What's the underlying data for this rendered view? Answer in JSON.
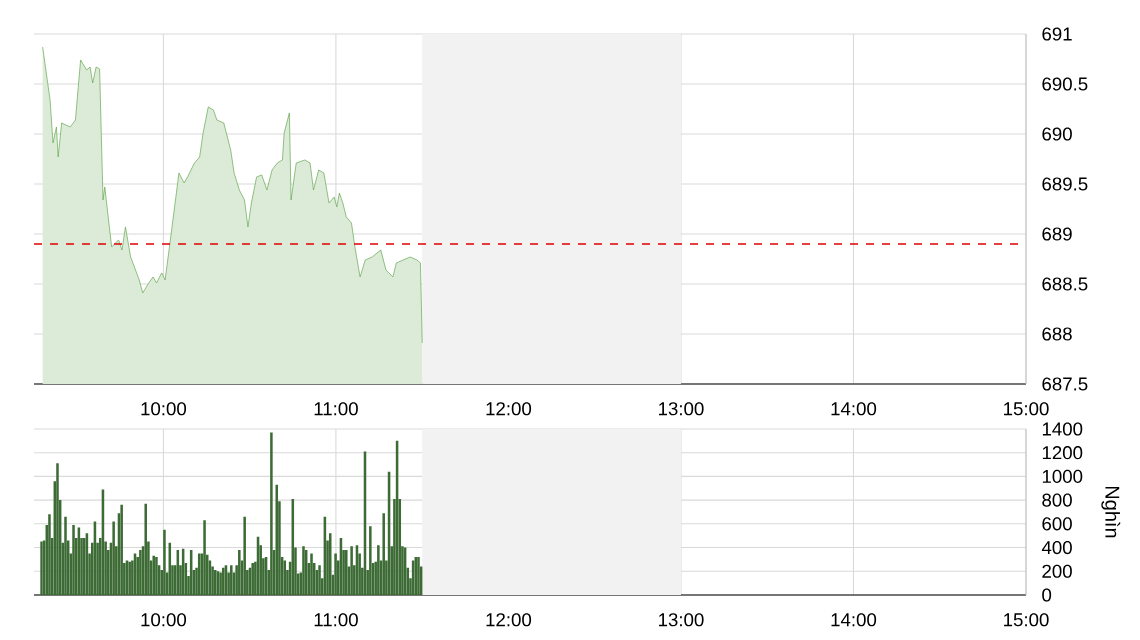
{
  "chart_data": [
    {
      "type": "area",
      "xlim": [
        9.25,
        15
      ],
      "ylim": [
        687.5,
        691
      ],
      "xticks": [
        {
          "value": 10,
          "label": "10:00"
        },
        {
          "value": 11,
          "label": "11:00"
        },
        {
          "value": 12,
          "label": "12:00"
        },
        {
          "value": 13,
          "label": "13:00"
        },
        {
          "value": 14,
          "label": "14:00"
        },
        {
          "value": 15,
          "label": "15:00"
        }
      ],
      "yticks": [
        687.5,
        688,
        688.5,
        689,
        689.5,
        690,
        690.5,
        691
      ],
      "grid": true,
      "marker": "none",
      "bands": [
        {
          "axis": "x",
          "from": 11.5,
          "to": 13,
          "color": "#f2f2f2"
        }
      ],
      "ref_lines": [
        {
          "axis": "y",
          "value": 688.9,
          "color": "#e00000",
          "line_style": "dashed"
        }
      ],
      "x": [
        9.3,
        9.343,
        9.36,
        9.38,
        9.39,
        9.41,
        9.46,
        9.49,
        9.52,
        9.555,
        9.575,
        9.59,
        9.61,
        9.63,
        9.65,
        9.66,
        9.7,
        9.74,
        9.76,
        9.78,
        9.81,
        9.86,
        9.88,
        9.915,
        9.94,
        9.96,
        9.99,
        10.01,
        10.05,
        10.09,
        10.12,
        10.14,
        10.18,
        10.21,
        10.23,
        10.26,
        10.29,
        10.31,
        10.35,
        10.39,
        10.41,
        10.44,
        10.47,
        10.49,
        10.51,
        10.54,
        10.57,
        10.6,
        10.63,
        10.66,
        10.69,
        10.7,
        10.73,
        10.74,
        10.77,
        10.82,
        10.85,
        10.87,
        10.9,
        10.93,
        10.96,
        10.99,
        11.005,
        11.02,
        11.04,
        11.06,
        11.09,
        11.11,
        11.14,
        11.17,
        11.21,
        11.26,
        11.29,
        11.33,
        11.35,
        11.39,
        11.43,
        11.47,
        11.49,
        11.5
      ],
      "series": [
        {
          "color": "#5fa34a",
          "values": [
            690.87,
            690.34,
            689.91,
            690.07,
            689.77,
            690.11,
            690.07,
            690.14,
            690.74,
            690.64,
            690.67,
            690.51,
            690.67,
            690.65,
            689.34,
            689.47,
            688.87,
            688.94,
            688.84,
            689.07,
            688.77,
            688.54,
            688.41,
            688.51,
            688.57,
            688.51,
            688.61,
            688.54,
            689.07,
            689.61,
            689.51,
            689.57,
            689.71,
            689.77,
            690.01,
            690.27,
            690.24,
            690.14,
            690.11,
            689.84,
            689.61,
            689.44,
            689.34,
            689.07,
            689.31,
            689.57,
            689.59,
            689.44,
            689.64,
            689.71,
            689.74,
            690.01,
            690.21,
            689.34,
            689.71,
            689.74,
            689.71,
            689.44,
            689.64,
            689.61,
            689.31,
            689.37,
            689.27,
            689.41,
            689.31,
            689.17,
            689.11,
            688.87,
            688.57,
            688.74,
            688.77,
            688.84,
            688.64,
            688.57,
            688.71,
            688.74,
            688.77,
            688.74,
            688.71,
            687.91
          ]
        }
      ]
    },
    {
      "type": "bar",
      "xlim": [
        9.25,
        15
      ],
      "ylim": [
        0,
        1400
      ],
      "xticks": [
        {
          "value": 10,
          "label": "10:00"
        },
        {
          "value": 11,
          "label": "11:00"
        },
        {
          "value": 12,
          "label": "12:00"
        },
        {
          "value": 13,
          "label": "13:00"
        },
        {
          "value": 14,
          "label": "14:00"
        },
        {
          "value": 15,
          "label": "15:00"
        }
      ],
      "yticks": [
        0,
        200,
        400,
        600,
        800,
        1000,
        1200,
        1400
      ],
      "ylabel": "Nghìn",
      "grid": true,
      "bands": [
        {
          "axis": "x",
          "from": 11.5,
          "to": 13,
          "color": "#f2f2f2"
        }
      ],
      "x": [
        9.293,
        9.3085,
        9.324,
        9.3395,
        9.355,
        9.3705,
        9.386,
        9.4015,
        9.417,
        9.4325,
        9.448,
        9.4635,
        9.479,
        9.4945,
        9.51,
        9.5255,
        9.541,
        9.5565,
        9.572,
        9.5875,
        9.603,
        9.6185,
        9.634,
        9.6495,
        9.665,
        9.6805,
        9.696,
        9.7115,
        9.727,
        9.7425,
        9.758,
        9.7735,
        9.789,
        9.8045,
        9.82,
        9.8355,
        9.851,
        9.8665,
        9.882,
        9.8975,
        9.913,
        9.9285,
        9.944,
        9.9595,
        9.975,
        9.9905,
        10.006,
        10.0215,
        10.037,
        10.0525,
        10.068,
        10.0835,
        10.099,
        10.1145,
        10.13,
        10.1455,
        10.161,
        10.1765,
        10.192,
        10.2075,
        10.223,
        10.2385,
        10.254,
        10.2695,
        10.285,
        10.3005,
        10.316,
        10.3315,
        10.347,
        10.3625,
        10.378,
        10.3935,
        10.409,
        10.4245,
        10.44,
        10.4555,
        10.471,
        10.4865,
        10.502,
        10.5175,
        10.533,
        10.5485,
        10.564,
        10.5795,
        10.595,
        10.6105,
        10.626,
        10.6415,
        10.657,
        10.6725,
        10.688,
        10.7035,
        10.719,
        10.7345,
        10.75,
        10.7655,
        10.781,
        10.7965,
        10.812,
        10.8275,
        10.843,
        10.8585,
        10.874,
        10.8895,
        10.905,
        10.9205,
        10.936,
        10.9515,
        10.967,
        10.9825,
        10.998,
        11.0135,
        11.029,
        11.0445,
        11.06,
        11.0755,
        11.091,
        11.1065,
        11.122,
        11.1375,
        11.153,
        11.1685,
        11.184,
        11.1995,
        11.215,
        11.2305,
        11.246,
        11.2615,
        11.277,
        11.2925,
        11.308,
        11.3235,
        11.339,
        11.3545,
        11.37,
        11.3855,
        11.401,
        11.4165,
        11.432,
        11.4475,
        11.463,
        11.4785,
        11.494
      ],
      "series": [
        {
          "color": "#3d6b35",
          "values": [
            450,
            460,
            590,
            680,
            480,
            960,
            1110,
            800,
            440,
            660,
            460,
            350,
            590,
            480,
            570,
            480,
            480,
            520,
            350,
            440,
            620,
            440,
            480,
            890,
            450,
            380,
            440,
            620,
            410,
            690,
            760,
            270,
            290,
            280,
            290,
            350,
            320,
            380,
            410,
            770,
            450,
            290,
            330,
            320,
            250,
            210,
            550,
            190,
            440,
            250,
            250,
            380,
            250,
            390,
            270,
            160,
            380,
            210,
            230,
            350,
            350,
            630,
            340,
            290,
            240,
            210,
            200,
            190,
            230,
            250,
            190,
            250,
            190,
            250,
            380,
            290,
            660,
            210,
            230,
            270,
            280,
            490,
            420,
            310,
            320,
            210,
            1370,
            380,
            930,
            790,
            320,
            290,
            210,
            280,
            810,
            400,
            180,
            190,
            410,
            380,
            270,
            350,
            270,
            210,
            250,
            140,
            660,
            460,
            520,
            170,
            350,
            290,
            480,
            380,
            380,
            240,
            410,
            250,
            420,
            350,
            230,
            1210,
            210,
            580,
            270,
            280,
            420,
            290,
            690,
            290,
            1040,
            410,
            810,
            1300,
            810,
            410,
            400,
            230,
            140,
            290,
            320,
            320,
            240
          ]
        }
      ]
    }
  ]
}
